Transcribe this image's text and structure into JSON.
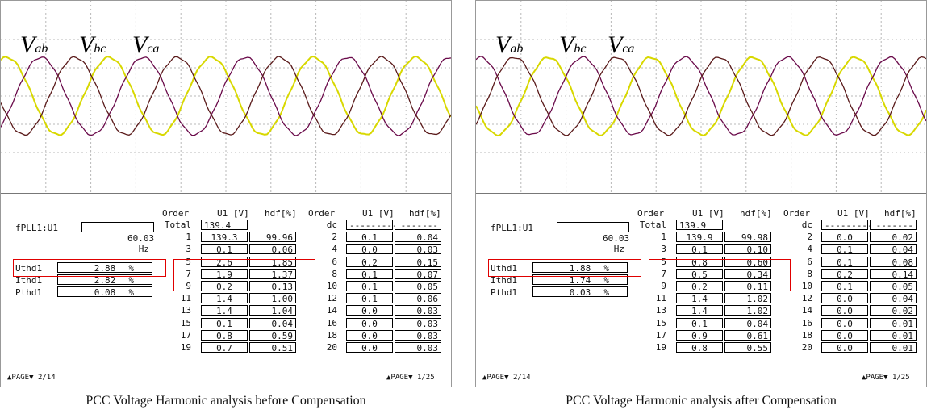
{
  "chart_data": [
    {
      "type": "line",
      "series": [
        {
          "name": "V_ab",
          "color": "#d8d800"
        },
        {
          "name": "V_bc",
          "color": "#6a0a4a"
        },
        {
          "name": "V_ca",
          "color": "#5a1a1a"
        }
      ],
      "grid": true,
      "labels": [
        {
          "v": "V",
          "s": "ab"
        },
        {
          "v": "V",
          "s": "bc"
        },
        {
          "v": "V",
          "s": "ca"
        }
      ],
      "phase": 0.0,
      "freq_cycles": 4.4,
      "measurements": {
        "f_label": "fPLL1:U1",
        "f_value": "60.03",
        "f_unit": "Hz",
        "uthd_label": "Uthd1",
        "uthd": "2.88",
        "uthd_unit": "%",
        "ithd_label": "Ithd1",
        "ithd": "2.82",
        "ithd_unit": "%",
        "pthd_label": "Pthd1",
        "pthd": "0.08",
        "pthd_unit": "%",
        "col_order": "Order",
        "col_u": "U1 [V]",
        "col_hdf": "hdf[%]",
        "left_rows": [
          {
            "order": "Total",
            "u": "139.4",
            "hdf": ""
          },
          {
            "order": "1",
            "u": "139.3",
            "hdf": "99.96"
          },
          {
            "order": "3",
            "u": "0.1",
            "hdf": "0.06"
          },
          {
            "order": "5",
            "u": "2.6",
            "hdf": "1.85"
          },
          {
            "order": "7",
            "u": "1.9",
            "hdf": "1.37"
          },
          {
            "order": "9",
            "u": "0.2",
            "hdf": "0.13"
          },
          {
            "order": "11",
            "u": "1.4",
            "hdf": "1.00"
          },
          {
            "order": "13",
            "u": "1.4",
            "hdf": "1.04"
          },
          {
            "order": "15",
            "u": "0.1",
            "hdf": "0.04"
          },
          {
            "order": "17",
            "u": "0.8",
            "hdf": "0.59"
          },
          {
            "order": "19",
            "u": "0.7",
            "hdf": "0.51"
          }
        ],
        "right_rows": [
          {
            "order": "dc",
            "u": "---------",
            "hdf": "-------"
          },
          {
            "order": "2",
            "u": "0.1",
            "hdf": "0.04"
          },
          {
            "order": "4",
            "u": "0.0",
            "hdf": "0.03"
          },
          {
            "order": "6",
            "u": "0.2",
            "hdf": "0.15"
          },
          {
            "order": "8",
            "u": "0.1",
            "hdf": "0.07"
          },
          {
            "order": "10",
            "u": "0.1",
            "hdf": "0.05"
          },
          {
            "order": "12",
            "u": "0.1",
            "hdf": "0.06"
          },
          {
            "order": "14",
            "u": "0.0",
            "hdf": "0.03"
          },
          {
            "order": "16",
            "u": "0.0",
            "hdf": "0.03"
          },
          {
            "order": "18",
            "u": "0.0",
            "hdf": "0.03"
          },
          {
            "order": "20",
            "u": "0.0",
            "hdf": "0.03"
          }
        ],
        "page_left_text": "PAGE",
        "page_left_num": "2/14",
        "page_right_text": "PAGE",
        "page_right_num": "1/25"
      },
      "caption": "PCC Voltage Harmonic analysis before Compensation"
    },
    {
      "type": "line",
      "series": [
        {
          "name": "V_ab",
          "color": "#d8d800"
        },
        {
          "name": "V_bc",
          "color": "#6a0a4a"
        },
        {
          "name": "V_ca",
          "color": "#5a1a1a"
        }
      ],
      "grid": true,
      "labels": [
        {
          "v": "V",
          "s": "ab"
        },
        {
          "v": "V",
          "s": "bc"
        },
        {
          "v": "V",
          "s": "ca"
        }
      ],
      "phase": 0.35,
      "freq_cycles": 4.4,
      "measurements": {
        "f_label": "fPLL1:U1",
        "f_value": "60.03",
        "f_unit": "Hz",
        "uthd_label": "Uthd1",
        "uthd": "1.88",
        "uthd_unit": "%",
        "ithd_label": "Ithd1",
        "ithd": "1.74",
        "ithd_unit": "%",
        "pthd_label": "Pthd1",
        "pthd": "0.03",
        "pthd_unit": "%",
        "col_order": "Order",
        "col_u": "U1 [V]",
        "col_hdf": "hdf[%]",
        "left_rows": [
          {
            "order": "Total",
            "u": "139.9",
            "hdf": ""
          },
          {
            "order": "1",
            "u": "139.9",
            "hdf": "99.98"
          },
          {
            "order": "3",
            "u": "0.1",
            "hdf": "0.10"
          },
          {
            "order": "5",
            "u": "0.8",
            "hdf": "0.60"
          },
          {
            "order": "7",
            "u": "0.5",
            "hdf": "0.34"
          },
          {
            "order": "9",
            "u": "0.2",
            "hdf": "0.11"
          },
          {
            "order": "11",
            "u": "1.4",
            "hdf": "1.02"
          },
          {
            "order": "13",
            "u": "1.4",
            "hdf": "1.02"
          },
          {
            "order": "15",
            "u": "0.1",
            "hdf": "0.04"
          },
          {
            "order": "17",
            "u": "0.9",
            "hdf": "0.61"
          },
          {
            "order": "19",
            "u": "0.8",
            "hdf": "0.55"
          }
        ],
        "right_rows": [
          {
            "order": "dc",
            "u": "---------",
            "hdf": "-------"
          },
          {
            "order": "2",
            "u": "0.0",
            "hdf": "0.02"
          },
          {
            "order": "4",
            "u": "0.1",
            "hdf": "0.04"
          },
          {
            "order": "6",
            "u": "0.1",
            "hdf": "0.08"
          },
          {
            "order": "8",
            "u": "0.2",
            "hdf": "0.14"
          },
          {
            "order": "10",
            "u": "0.1",
            "hdf": "0.05"
          },
          {
            "order": "12",
            "u": "0.0",
            "hdf": "0.04"
          },
          {
            "order": "14",
            "u": "0.0",
            "hdf": "0.02"
          },
          {
            "order": "16",
            "u": "0.0",
            "hdf": "0.01"
          },
          {
            "order": "18",
            "u": "0.0",
            "hdf": "0.01"
          },
          {
            "order": "20",
            "u": "0.0",
            "hdf": "0.01"
          }
        ],
        "page_left_text": "PAGE",
        "page_left_num": "2/14",
        "page_right_text": "PAGE",
        "page_right_num": "1/25"
      },
      "caption": "PCC Voltage Harmonic analysis after Compensation"
    }
  ]
}
